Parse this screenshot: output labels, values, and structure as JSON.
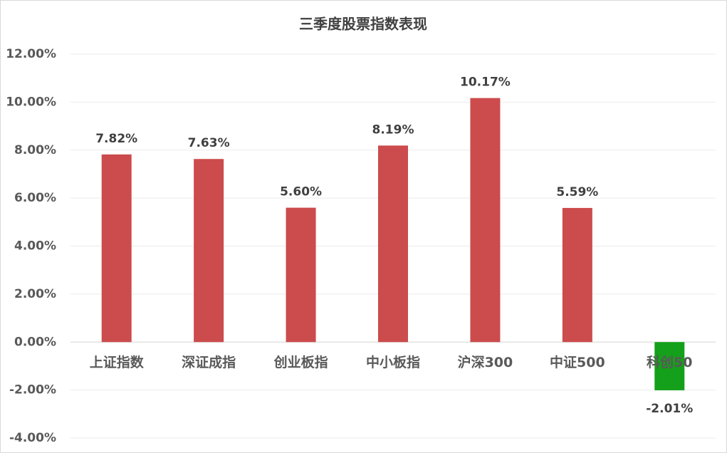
{
  "chart_data": {
    "type": "bar",
    "title": "三季度股票指数表现",
    "categories": [
      "上证指数",
      "深证成指",
      "创业板指",
      "中小板指",
      "沪深300",
      "中证500",
      "科创50"
    ],
    "values": [
      7.82,
      7.63,
      5.6,
      8.19,
      10.17,
      5.59,
      -2.01
    ],
    "value_labels": [
      "7.82%",
      "7.63%",
      "5.60%",
      "8.19%",
      "10.17%",
      "5.59%",
      "-2.01%"
    ],
    "colors": [
      "#cc4b4c",
      "#cc4b4c",
      "#cc4b4c",
      "#cc4b4c",
      "#cc4b4c",
      "#cc4b4c",
      "#14a01a"
    ],
    "ylim": [
      -4,
      12
    ],
    "yticks": [
      {
        "value": -4,
        "label": "-4.00%"
      },
      {
        "value": -2,
        "label": "-2.00%"
      },
      {
        "value": 0,
        "label": "0.00%"
      },
      {
        "value": 2,
        "label": "2.00%"
      },
      {
        "value": 4,
        "label": "4.00%"
      },
      {
        "value": 6,
        "label": "6.00%"
      },
      {
        "value": 8,
        "label": "8.00%"
      },
      {
        "value": 10,
        "label": "10.00%"
      },
      {
        "value": 12,
        "label": "12.00%"
      }
    ],
    "grid": true
  }
}
